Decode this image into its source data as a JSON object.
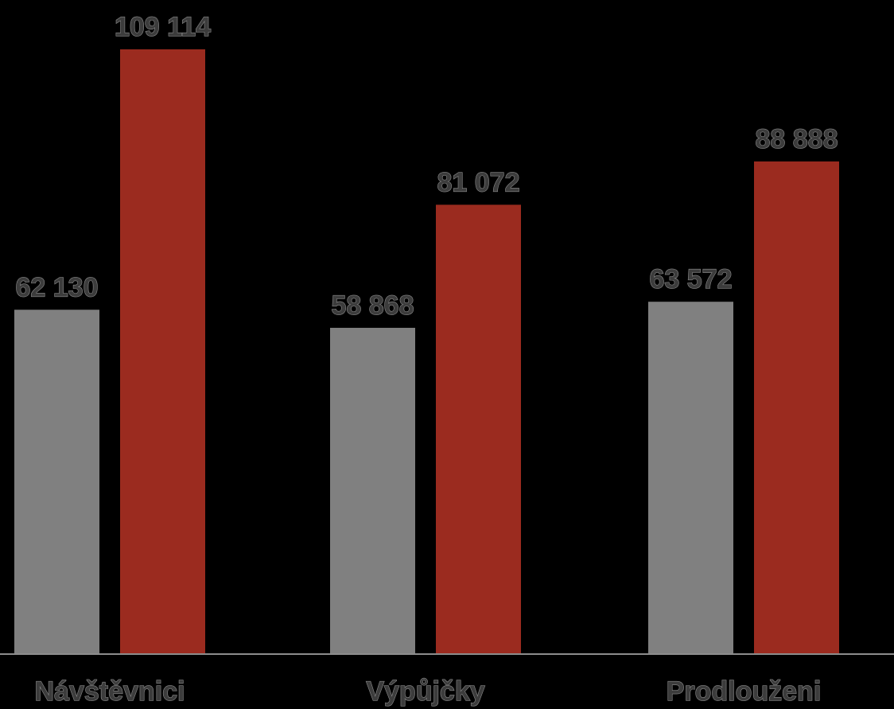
{
  "chart_data": {
    "type": "bar",
    "categories": [
      "Návštěvnici",
      "Výpůjčky",
      "Prodlouženi"
    ],
    "series": [
      {
        "values": [
          62130,
          58868,
          63572
        ],
        "labels": [
          "62 130",
          "58 868",
          "63 572"
        ],
        "color": "#808080"
      },
      {
        "values": [
          109114,
          81072,
          88888
        ],
        "labels": [
          "109 114",
          "81 072",
          "88 888"
        ],
        "color": "#9b2b1f"
      }
    ],
    "title": "",
    "xlabel": "",
    "ylabel": "",
    "ylim": [
      0,
      115000
    ],
    "grid": false,
    "legend": "none",
    "colors": {
      "background": "#000000",
      "axis": "#8c8c8c",
      "label_text": "#3c3c3c"
    }
  }
}
